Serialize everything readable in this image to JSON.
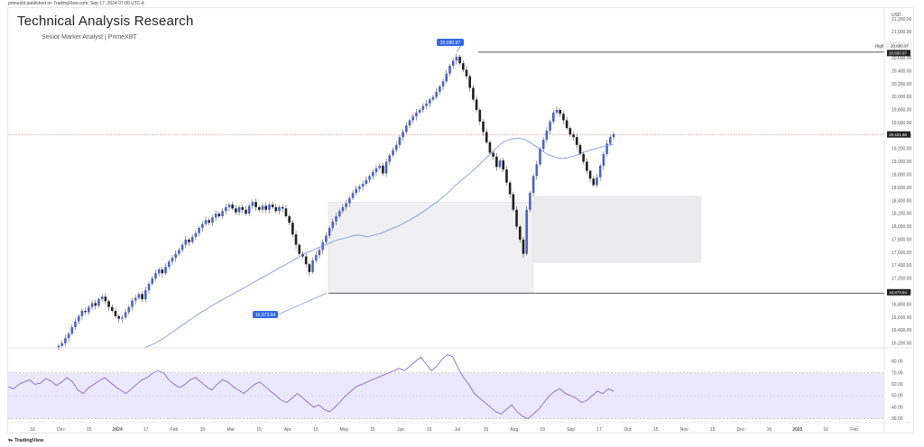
{
  "header": {
    "publish_line": "primexbt published on TradingView.com, Sep 17, 2024 07:00 UTC-4",
    "title": "Technical Analysis Research",
    "subtitle": "Senior Market Analyst | PrimeXBT"
  },
  "footer": {
    "brand": "TradingView"
  },
  "chart_data": {
    "type": "candlestick",
    "currency_label": "USD",
    "price_axis_ticks": [
      "21,200.00",
      "21,000.00",
      "20,800.00",
      "20,600.00",
      "20,400.00",
      "20,200.00",
      "20,000.00",
      "19,800.00",
      "19,600.00",
      "19,400.00",
      "19,200.00",
      "19,000.00",
      "18,800.00",
      "18,600.00",
      "18,400.00",
      "18,200.00",
      "18,000.00",
      "17,800.00",
      "17,600.00",
      "17,400.00",
      "17,200.00",
      "17,000.00",
      "16,800.00",
      "16,600.00",
      "16,400.00",
      "16,200.00"
    ],
    "price_ylim": [
      16130,
      21370
    ],
    "time_axis_labels": [
      "16",
      "Dec",
      "15",
      "2024",
      "17",
      "Feb",
      "15",
      "Mar",
      "15",
      "Apr",
      "15",
      "May",
      "15",
      "Jun",
      "15",
      "Jul",
      "15",
      "Aug",
      "19",
      "Sep",
      "17",
      "Oct",
      "15",
      "Nov",
      "15",
      "Dec",
      "16",
      "2025",
      "16",
      "Feb"
    ],
    "markers": {
      "high_label": "High",
      "high_value": "20,690.97",
      "high_line_value": "20,690.97",
      "last_price": "19,421.66",
      "support_value": "16,973.94",
      "peak_callout": "20,690.97",
      "low_callout": "16,973.94"
    },
    "zones": [
      {
        "name": "demand-zone-1",
        "date_start": "Apr 23",
        "date_end": "Aug 05",
        "price_low": 16973.94,
        "price_high": 18380
      },
      {
        "name": "demand-zone-2",
        "date_start": "Aug 05",
        "date_end": "Nov 05",
        "price_low": 17450,
        "price_high": 18470
      }
    ],
    "series_close": [
      16160,
      16200,
      16280,
      16350,
      16450,
      16540,
      16620,
      16700,
      16680,
      16760,
      16820,
      16780,
      16880,
      16920,
      16850,
      16760,
      16700,
      16620,
      16580,
      16600,
      16680,
      16760,
      16860,
      16900,
      16960,
      16880,
      17020,
      17120,
      17200,
      17280,
      17340,
      17280,
      17380,
      17460,
      17520,
      17580,
      17640,
      17720,
      17800,
      17760,
      17840,
      17900,
      17980,
      18040,
      18100,
      18060,
      18140,
      18200,
      18160,
      18240,
      18300,
      18340,
      18280,
      18220,
      18300,
      18260,
      18200,
      18320,
      18380,
      18300,
      18260,
      18320,
      18260,
      18340,
      18300,
      18240,
      18300,
      18280,
      18160,
      18060,
      17880,
      17720,
      17580,
      17540,
      17420,
      17300,
      17480,
      17560,
      17640,
      17760,
      17860,
      17980,
      18080,
      18160,
      18240,
      18300,
      18360,
      18440,
      18520,
      18580,
      18620,
      18660,
      18720,
      18780,
      18840,
      18900,
      18940,
      18820,
      19000,
      19100,
      19180,
      19260,
      19380,
      19460,
      19560,
      19640,
      19700,
      19760,
      19800,
      19860,
      19900,
      19960,
      20000,
      20080,
      20160,
      20240,
      20360,
      20480,
      20560,
      20620,
      20520,
      20420,
      20320,
      20140,
      19960,
      19800,
      19620,
      19460,
      19300,
      19140,
      19080,
      18920,
      19020,
      18880,
      18680,
      18500,
      18260,
      18000,
      17800,
      17580,
      18260,
      18520,
      18780,
      18960,
      19200,
      19340,
      19480,
      19620,
      19760,
      19800,
      19740,
      19640,
      19520,
      19420,
      19380,
      19260,
      19120,
      19000,
      18860,
      18740,
      18640,
      18760,
      18940,
      19120,
      19280,
      19380,
      19421.66
    ],
    "ma_values": [
      16130,
      16160,
      16190,
      16230,
      16270,
      16320,
      16370,
      16420,
      16470,
      16520,
      16570,
      16620,
      16670,
      16710,
      16760,
      16800,
      16840,
      16880,
      16920,
      16960,
      17000,
      17040,
      17080,
      17120,
      17160,
      17200,
      17240,
      17280,
      17320,
      17360,
      17400,
      17440,
      17480,
      17520,
      17560,
      17600,
      17630,
      17660,
      17690,
      17720,
      17750,
      17780,
      17800,
      17820,
      17840,
      17860,
      17870,
      17860,
      17840,
      17860,
      17880,
      17900,
      17930,
      17960,
      17990,
      18020,
      18060,
      18100,
      18140,
      18180,
      18230,
      18280,
      18330,
      18380,
      18440,
      18500,
      18570,
      18640,
      18700,
      18760,
      18820,
      18880,
      18950,
      19020,
      19090,
      19160,
      19230,
      19290,
      19330,
      19350,
      19360,
      19360,
      19340,
      19300,
      19250,
      19200,
      19150,
      19110,
      19080,
      19060,
      19050,
      19060,
      19080,
      19100,
      19130,
      19160,
      19180,
      19200,
      19220,
      19240,
      19260,
      19270
    ],
    "rsi": {
      "type": "line",
      "name": "RSI",
      "levels": [
        70,
        50,
        30
      ],
      "ylim": [
        28,
        88
      ],
      "ticks": [
        "80.00",
        "70.00",
        "60.00",
        "50.00",
        "40.00",
        "30.00"
      ],
      "values": [
        58,
        56,
        60,
        62,
        64,
        60,
        61,
        65,
        63,
        59,
        62,
        66,
        62,
        55,
        52,
        57,
        60,
        63,
        66,
        62,
        58,
        55,
        52,
        56,
        60,
        64,
        66,
        70,
        72,
        70,
        64,
        60,
        57,
        60,
        64,
        66,
        62,
        58,
        55,
        60,
        64,
        62,
        58,
        55,
        52,
        56,
        60,
        62,
        58,
        54,
        50,
        46,
        44,
        48,
        52,
        48,
        44,
        40,
        42,
        38,
        36,
        40,
        45,
        50,
        54,
        58,
        60,
        62,
        64,
        66,
        68,
        70,
        72,
        74,
        72,
        76,
        80,
        84,
        78,
        72,
        76,
        82,
        86,
        84,
        74,
        66,
        60,
        52,
        48,
        44,
        40,
        36,
        34,
        38,
        42,
        36,
        32,
        30,
        34,
        38,
        44,
        50,
        54,
        56,
        52,
        50,
        48,
        44,
        46,
        50,
        54,
        52,
        56,
        54
      ]
    }
  }
}
